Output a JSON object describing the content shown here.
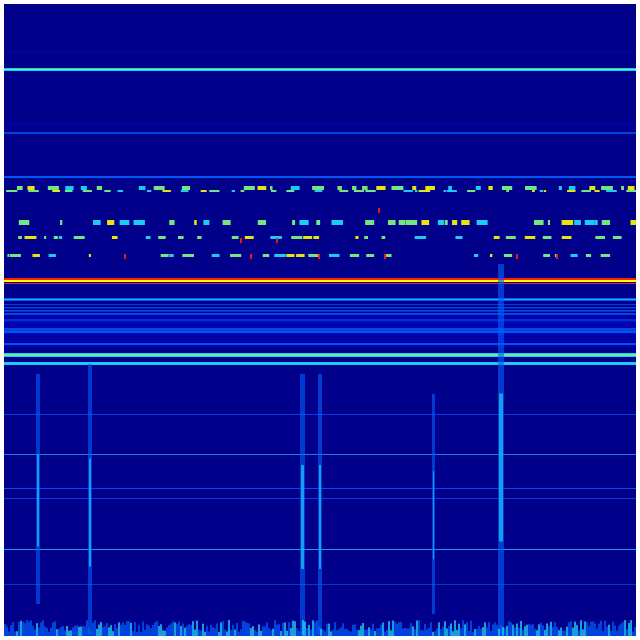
{
  "image": {
    "kind": "spectrogram-heatmap",
    "colormap": "jet",
    "colors": {
      "background": "#00008a",
      "low": "#0000d0",
      "mid": "#0060ff",
      "cyan": "#20e0ff",
      "green": "#80ff80",
      "yellow": "#ffff00",
      "red": "#ff2000",
      "border": "#ffffff"
    }
  }
}
